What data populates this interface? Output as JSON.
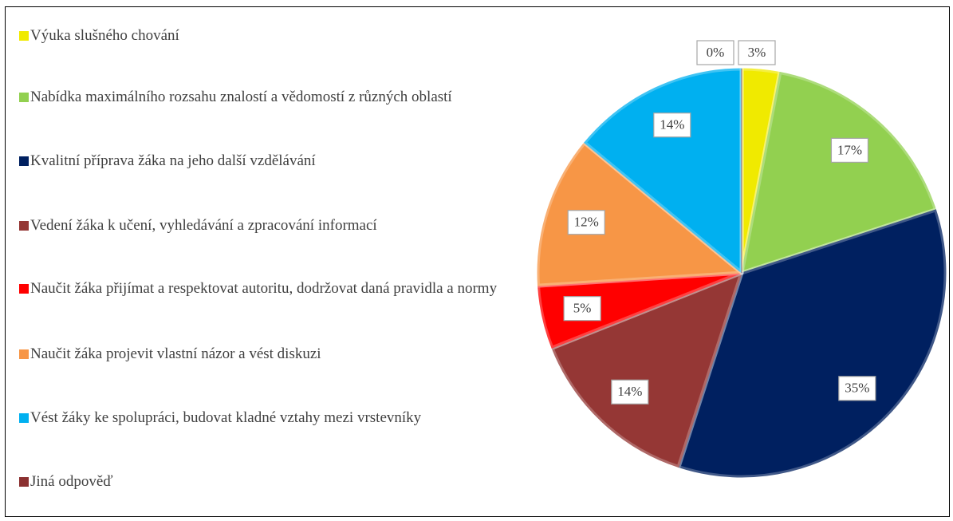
{
  "chart_data": {
    "type": "pie",
    "categories": [
      "Výuka slušného chování",
      "Nabídka maximálního rozsahu znalostí a vědomostí z různých oblastí",
      "Kvalitní příprava žáka na jeho další vzdělávání",
      "Vedení žáka k učení, vyhledávání a zpracování informací",
      "Naučit žáka přijímat a respektovat autoritu, dodržovat daná pravidla a normy",
      "Naučit žáka projevit vlastní názor a vést diskuzi",
      "Vést žáky ke spolupráci, budovat kladné vztahy mezi vrstevníky",
      "Jiná odpověď"
    ],
    "values": [
      3,
      17,
      35,
      14,
      5,
      12,
      14,
      0
    ],
    "value_labels": [
      "3%",
      "17%",
      "35%",
      "14%",
      "5%",
      "12%",
      "14%",
      "0%"
    ],
    "colors": [
      "#f0ea00",
      "#92d050",
      "#002060",
      "#953735",
      "#ff0000",
      "#f79646",
      "#00b0f0",
      "#8b3030"
    ],
    "legend": "left"
  }
}
